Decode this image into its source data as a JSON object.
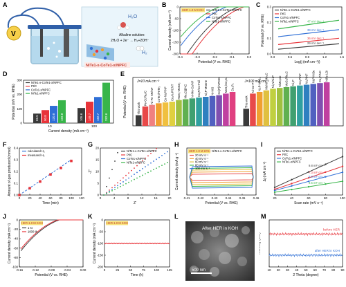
{
  "panels": {
    "A": {
      "label": "A",
      "device_label": "NiTe1-x-CoTe1-x/NPFC",
      "h2o": "H₂O",
      "h2": "H₂",
      "alkaline_title": "Alkaline solution:",
      "reaction": "2H₂O + 2e⁻ → H₂+2OH⁻",
      "meter": "V"
    },
    "B": {
      "label": "B"
    },
    "C": {
      "label": "C"
    },
    "D": {
      "label": "D"
    },
    "E": {
      "label": "E"
    },
    "F": {
      "label": "F"
    },
    "G": {
      "label": "G"
    },
    "H": {
      "label": "H"
    },
    "I": {
      "label": "I"
    },
    "J": {
      "label": "J"
    },
    "K": {
      "label": "K"
    },
    "L": {
      "label": "L",
      "caption": "After HER in KOH",
      "scale_bar": "500 nm"
    },
    "M": {
      "label": "M"
    }
  },
  "colors": {
    "nite_cote": "#3a3a3a",
    "ptc": "#e8343a",
    "cote": "#2f6fd6",
    "nite": "#38b54a",
    "teal": "#11a88a"
  },
  "chart_data": [
    {
      "id": "B",
      "type": "line",
      "xlabel": "Potential (V vs. RHE)",
      "ylabel": "Current density (mA cm⁻²)",
      "xlim": [
        -0.4,
        0.0
      ],
      "ylim": [
        -200,
        0
      ],
      "xticks": [
        "-0.4",
        "-0.3",
        "-0.2",
        "-0.1",
        "0.0"
      ],
      "yticks": [
        "0",
        "-50",
        "-100",
        "-150",
        "-200"
      ],
      "annotation": "HER 1.0 M KOH",
      "series": [
        {
          "name": "NiTe1-x-CoTe1-x/NPFC",
          "color_key": "nite_cote",
          "onset": -0.06
        },
        {
          "name": "Pt/C",
          "color_key": "ptc",
          "onset": -0.03
        },
        {
          "name": "CoTe1-x/NPFC",
          "color_key": "cote",
          "onset": -0.13
        },
        {
          "name": "NiTe1-x/NPFC",
          "color_key": "nite",
          "onset": -0.17
        }
      ]
    },
    {
      "id": "C",
      "type": "line",
      "xlabel": "Log(j (mA cm⁻²))",
      "ylabel": "Potential (V vs. RHE)",
      "xlim": [
        0.3,
        1.5
      ],
      "ylim": [
        0.0,
        0.3
      ],
      "xticks": [
        "0.3",
        "0.6",
        "0.9",
        "1.2",
        "1.5"
      ],
      "yticks": [
        "0.0",
        "0.1",
        "0.2",
        "0.3"
      ],
      "series": [
        {
          "name": "NiTe1-x-CoTe1-x/NPFC",
          "color_key": "nite_cote",
          "tafel": "29 mV dec⁻¹",
          "y0": 0.03,
          "y1": 0.065
        },
        {
          "name": "Pt/C",
          "color_key": "ptc",
          "tafel": "36 mV dec⁻¹",
          "y0": 0.06,
          "y1": 0.1
        },
        {
          "name": "CoTe1-x/NPFC",
          "color_key": "cote",
          "tafel": "39 mV dec⁻¹",
          "y0": 0.11,
          "y1": 0.155
        },
        {
          "name": "NiTe1-x/NPFC",
          "color_key": "nite",
          "tafel": "47 mV dec⁻¹",
          "y0": 0.16,
          "y1": 0.215
        }
      ]
    },
    {
      "id": "D",
      "type": "bar",
      "xlabel": "Current density (mA cm⁻²)",
      "ylabel": "Potential (mV vs. RHE)",
      "categories": [
        "10",
        "100"
      ],
      "ylim": [
        0,
        300
      ],
      "yticks": [
        "0",
        "100",
        "200",
        "300"
      ],
      "series": [
        {
          "name": "NiTe1-x-CoTe1-x/NPFC",
          "color_key": "nite_cote",
          "values": [
            66.5,
            105.6
          ]
        },
        {
          "name": "Pt/C",
          "color_key": "ptc",
          "values": [
            90.8,
            149.7
          ]
        },
        {
          "name": "CoTe1-x/NPFC",
          "color_key": "cote",
          "values": [
            120.8,
            182.7
          ]
        },
        {
          "name": "NiTe1-x/NPFC",
          "color_key": "nite",
          "values": [
            159.8,
            282.6
          ]
        }
      ]
    },
    {
      "id": "E",
      "type": "bar",
      "ylabel": "Potential (V vs. RHE)",
      "group_labels": [
        "J=10 mA cm⁻²",
        "J=100 mA cm⁻²"
      ],
      "groups": [
        {
          "bars": [
            {
              "name": "This work",
              "value": 0.066,
              "color": "#3a3a3a"
            },
            {
              "name": "Fe-CoTe₂/C",
              "value": 0.12,
              "color": "#e84a4a"
            },
            {
              "name": "Ni-Fe NR/NF",
              "value": 0.13,
              "color": "#f08080"
            },
            {
              "name": "CoTe₂/FeTe₂",
              "value": 0.14,
              "color": "#f0a030"
            },
            {
              "name": "Co-Ni₂P/NF",
              "value": 0.145,
              "color": "#f0c040"
            },
            {
              "name": "Co₂N₄P/CNT",
              "value": 0.15,
              "color": "#e0d040"
            },
            {
              "name": "MoS₂-MoSe₂",
              "value": 0.16,
              "color": "#a0c040"
            },
            {
              "name": "Mo₂C@NC",
              "value": 0.165,
              "color": "#60b050"
            },
            {
              "name": "Ni-Mo-Cu/NF",
              "value": 0.17,
              "color": "#40a070"
            },
            {
              "name": "CoₓP/Co-Foil",
              "value": 0.175,
              "color": "#30a0a0"
            },
            {
              "name": "Ni₂P-MXene",
              "value": 0.18,
              "color": "#3080c0"
            },
            {
              "name": "Ni-NiS",
              "value": 0.185,
              "color": "#5060c0"
            },
            {
              "name": "Co(P)/NPMG",
              "value": 0.19,
              "color": "#8050b0"
            },
            {
              "name": "MoS₂/Co₃S₄",
              "value": 0.2,
              "color": "#c040a0"
            },
            {
              "name": "Co₂P₃",
              "value": 0.21,
              "color": "#e04080"
            }
          ]
        },
        {
          "bars": [
            {
              "name": "This work",
              "value": 0.106,
              "color": "#3a3a3a"
            },
            {
              "name": "Ni-Co-P",
              "value": 0.2,
              "color": "#e84a4a"
            },
            {
              "name": "Ni₂P-MoS₂",
              "value": 0.21,
              "color": "#f0a030"
            },
            {
              "name": "MoNiF-Mo₂C",
              "value": 0.22,
              "color": "#e0c040"
            },
            {
              "name": "Ni₃N/Ni₄P",
              "value": 0.23,
              "color": "#c0d040"
            },
            {
              "name": "NiMoₔCo",
              "value": 0.235,
              "color": "#a0c040"
            },
            {
              "name": "MoS₂/Mo₂C",
              "value": 0.24,
              "color": "#60b050"
            },
            {
              "name": "Ni₃P",
              "value": 0.245,
              "color": "#40a070"
            },
            {
              "name": "Co₂P/NF",
              "value": 0.25,
              "color": "#30a0a0"
            },
            {
              "name": "Ni₂P/NF",
              "value": 0.255,
              "color": "#3080c0"
            },
            {
              "name": "Ni₂P-NiSe₂",
              "value": 0.26,
              "color": "#5060c0"
            },
            {
              "name": "Co₂P/NC",
              "value": 0.265,
              "color": "#8050b0"
            },
            {
              "name": "NiFe LDH",
              "value": 0.27,
              "color": "#c040a0"
            }
          ]
        }
      ]
    },
    {
      "id": "F",
      "type": "line",
      "xlabel": "Time (min)",
      "ylabel": "Amount of gas produced (mmol)",
      "xlim": [
        0,
        120
      ],
      "ylim": [
        0,
        0.4
      ],
      "xticks": [
        "0",
        "20",
        "40",
        "60",
        "80",
        "100",
        "120"
      ],
      "yticks": [
        "0.0",
        "0.1",
        "0.2",
        "0.3",
        "0.4"
      ],
      "series": [
        {
          "name": "calculated H₂",
          "style": "dashed",
          "color_key": "cote",
          "x": [
            0,
            20,
            40,
            60,
            80,
            100
          ],
          "y": [
            0,
            0.06,
            0.12,
            0.18,
            0.24,
            0.3
          ]
        },
        {
          "name": "measured H₂",
          "style": "markers",
          "color_key": "ptc",
          "x": [
            0,
            20,
            40,
            60,
            80,
            100
          ],
          "y": [
            0,
            0.058,
            0.115,
            0.175,
            0.23,
            0.29
          ]
        }
      ]
    },
    {
      "id": "G",
      "type": "scatter",
      "xlabel": "Z'",
      "ylabel": "-Z''",
      "xlim": [
        0,
        20
      ],
      "ylim": [
        0,
        20
      ],
      "xticks": [
        "0",
        "4",
        "8",
        "12",
        "16",
        "20"
      ],
      "yticks": [
        "0",
        "5",
        "10",
        "15",
        "20"
      ],
      "series": [
        {
          "name": "NiTe1-x-CoTe1-x/NPFC",
          "color_key": "nite_cote",
          "slope": 4.5
        },
        {
          "name": "Pt/C",
          "color_key": "ptc",
          "slope": 1.3
        },
        {
          "name": "CoTe1-x/NPFC",
          "color_key": "cote",
          "slope": 1.0
        },
        {
          "name": "NiTe1-x/NPFC",
          "color_key": "nite",
          "slope": 0.75
        }
      ]
    },
    {
      "id": "H",
      "type": "line",
      "xlabel": "Potential (V vs. RHE)",
      "ylabel": "Current density (mA g⁻¹)",
      "xlim": [
        0.4,
        0.46
      ],
      "ylim": [
        -2,
        2
      ],
      "xticks": [
        "0.41",
        "0.42",
        "0.43",
        "0.44",
        "0.45",
        "0.46"
      ],
      "annotation": "HER 1.0 M KOH",
      "subtitle": "NiTe1-x-CoTe1-x/NPFC",
      "series": [
        {
          "name": "20 mV s⁻¹",
          "color": "#e84a4a",
          "h": 0.4
        },
        {
          "name": "40 mV s⁻¹",
          "color": "#f0a030",
          "h": 0.7
        },
        {
          "name": "60 mV s⁻¹",
          "color": "#e0c040",
          "h": 1.0
        },
        {
          "name": "80 mV s⁻¹",
          "color": "#38b54a",
          "h": 1.25
        },
        {
          "name": "100 mV s⁻¹",
          "color": "#2f6fd6",
          "h": 1.5
        }
      ]
    },
    {
      "id": "I",
      "type": "line",
      "xlabel": "Scan rate (mV s⁻¹)",
      "ylabel": "Δj (mA cm⁻²)",
      "xlim": [
        10,
        110
      ],
      "ylim": [
        0,
        12
      ],
      "xticks": [
        "20",
        "40",
        "60",
        "80",
        "100"
      ],
      "series": [
        {
          "name": "NiTe1-x-CoTe1-x/NPFC",
          "color_key": "nite_cote",
          "cdl": "9.8 mF cm⁻²",
          "slope": 0.098
        },
        {
          "name": "Pt/C",
          "color_key": "ptc",
          "cdl": "7.3 mF cm⁻²",
          "slope": 0.073
        },
        {
          "name": "CoTe1-x/NPFC",
          "color_key": "cote",
          "cdl": "5.8 mF cm⁻²",
          "slope": 0.058
        },
        {
          "name": "NiTe1-x/NPFC",
          "color_key": "nite",
          "cdl": "3.5 mF cm⁻²",
          "slope": 0.035
        }
      ]
    },
    {
      "id": "J",
      "type": "line",
      "xlabel": "Potential (V vs. RHE)",
      "ylabel": "Current density (mA cm⁻²)",
      "xlim": [
        -0.16,
        0.0
      ],
      "ylim": [
        -100,
        0
      ],
      "xticks": [
        "-0.16",
        "-0.12",
        "-0.08",
        "-0.04",
        "0.00"
      ],
      "yticks": [
        "0",
        "-20",
        "-40",
        "-60",
        "-80",
        "-100"
      ],
      "annotation": "HER-1.0 M KOH",
      "series": [
        {
          "name": "1 st",
          "color_key": "nite_cote"
        },
        {
          "name": "1000 th",
          "color_key": "ptc"
        }
      ]
    },
    {
      "id": "K",
      "type": "line",
      "xlabel": "Time (h)",
      "ylabel": "Current density (mA cm⁻²)",
      "xlim": [
        0,
        140
      ],
      "ylim": [
        -200,
        0
      ],
      "xticks": [
        "0",
        "25",
        "50",
        "75",
        "100",
        "125"
      ],
      "yticks": [
        "0",
        "-50",
        "-100",
        "-150",
        "-200"
      ],
      "annotation": "HER-1.0 M KOH",
      "series": [
        {
          "name": "",
          "color_key": "ptc",
          "value": -100
        }
      ]
    },
    {
      "id": "M",
      "type": "line",
      "xlabel": "2 Theta (degree)",
      "ylabel": "Intensity (a.u.)",
      "xlim": [
        10,
        90
      ],
      "xticks": [
        "10",
        "20",
        "30",
        "40",
        "50",
        "60",
        "70",
        "80",
        "90"
      ],
      "series": [
        {
          "name": "before HER",
          "color_key": "ptc",
          "offset": 0.7
        },
        {
          "name": "after HER in KOH",
          "color_key": "cote",
          "offset": 0.25
        }
      ]
    }
  ]
}
